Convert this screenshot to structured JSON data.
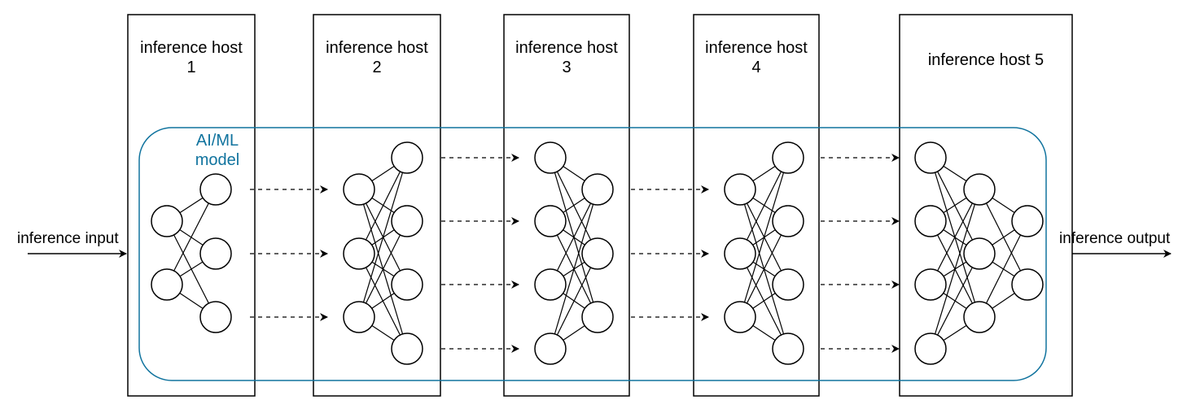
{
  "colors": {
    "stroke": "#000000",
    "model_border": "#10739e",
    "model_label": "#10739e",
    "background": "#ffffff"
  },
  "hosts": [
    {
      "line1": "inference host",
      "line2": "1"
    },
    {
      "line1": "inference host",
      "line2": "2"
    },
    {
      "line1": "inference host",
      "line2": "3"
    },
    {
      "line1": "inference host",
      "line2": "4"
    },
    {
      "line1": "inference host 5",
      "line2": ""
    }
  ],
  "model": {
    "line1": "AI/ML",
    "line2": "model"
  },
  "input_label": "inference input",
  "output_label": "inference output"
}
